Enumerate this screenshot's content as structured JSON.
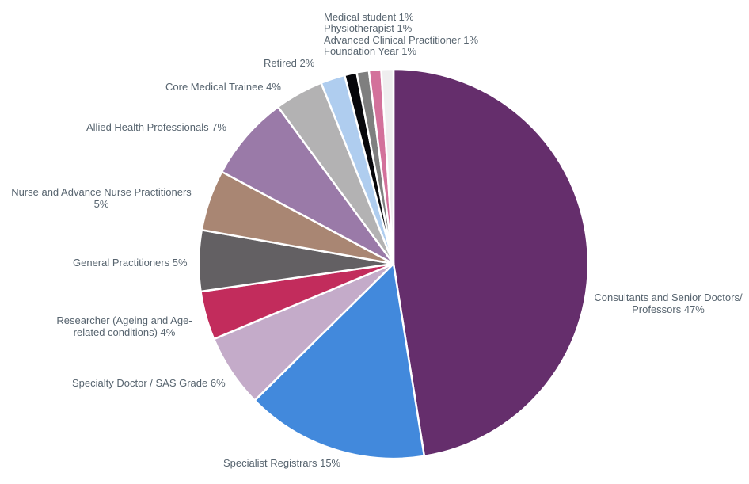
{
  "chart_data": {
    "type": "pie",
    "title": "",
    "unit": "%",
    "start_angle_deg": 0,
    "direction": "clockwise",
    "background_color": "#ffffff",
    "label_color": "#57646F",
    "slice_border_color": "#ffffff",
    "slices": [
      {
        "id": "consultants",
        "label": "Consultants and Senior Doctors/Professors",
        "value": 47,
        "color": "#652E6C",
        "display_label": "Consultants and Senior Doctors/\nProfessors 47%"
      },
      {
        "id": "specialist-registrars",
        "label": "Specialist Registrars",
        "value": 15,
        "color": "#4289DC",
        "display_label": "Specialist Registrars 15%"
      },
      {
        "id": "specialty-doctor",
        "label": "Specialty Doctor / SAS Grade",
        "value": 6,
        "color": "#C4ABC9",
        "display_label": "Specialty Doctor / SAS Grade 6%"
      },
      {
        "id": "researcher",
        "label": "Researcher (Ageing and Age-related conditions)",
        "value": 4,
        "color": "#C22C5C",
        "display_label": "Researcher (Ageing and Age-\nrelated conditions) 4%"
      },
      {
        "id": "general-practitioners",
        "label": "General Practitioners",
        "value": 5,
        "color": "#636063",
        "display_label": "General Practitioners 5%"
      },
      {
        "id": "nurse-practitioners",
        "label": "Nurse and Advance Nurse Practitioners",
        "value": 5,
        "color": "#A98673",
        "display_label": "Nurse and Advance Nurse Practitioners\n5%"
      },
      {
        "id": "allied-health",
        "label": "Allied Health Professionals",
        "value": 7,
        "color": "#9A7AA8",
        "display_label": "Allied Health Professionals 7%"
      },
      {
        "id": "core-medical-trainee",
        "label": "Core Medical Trainee",
        "value": 4,
        "color": "#B3B2B3",
        "display_label": "Core Medical Trainee 4%"
      },
      {
        "id": "retired",
        "label": "Retired",
        "value": 2,
        "color": "#AFCDEF",
        "display_label": "Retired 2%"
      },
      {
        "id": "medical-student",
        "label": "Medical student",
        "value": 1,
        "color": "#07070B",
        "display_label": "Medical student 1%"
      },
      {
        "id": "physiotherapist",
        "label": "Physiotherapist",
        "value": 1,
        "color": "#7F7F7F",
        "display_label": "Physiotherapist 1%"
      },
      {
        "id": "advanced-clinical-practitioner",
        "label": "Advanced Clinical Practitioner",
        "value": 1,
        "color": "#D3719B",
        "display_label": "Advanced Clinical Practitioner 1%"
      },
      {
        "id": "foundation-year",
        "label": "Foundation Year",
        "value": 1,
        "color": "#EFEEEF",
        "display_label": "Foundation Year 1%"
      }
    ]
  }
}
